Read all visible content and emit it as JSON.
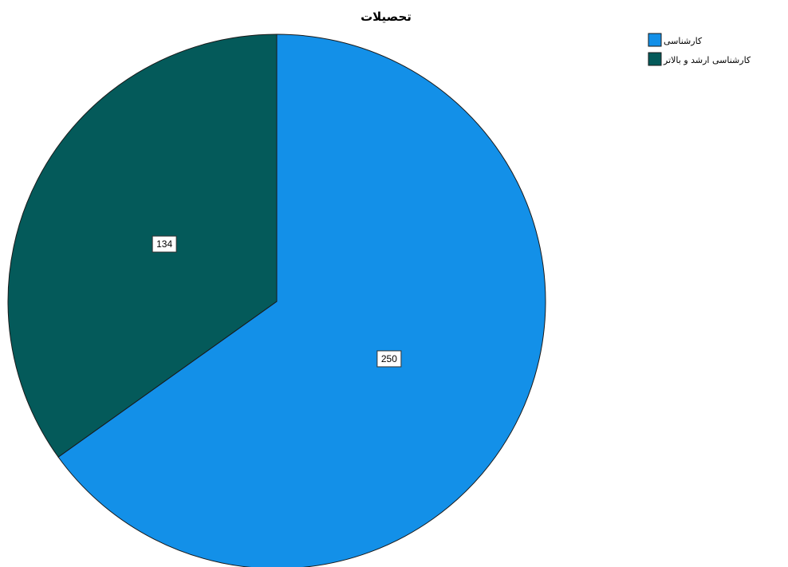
{
  "chart_data": {
    "type": "pie",
    "title": "تحصیلات",
    "categories": [
      "کارشناسی",
      "کارشناسی ارشد و بالاتر"
    ],
    "values": [
      250,
      134
    ],
    "colors": [
      "#1390E8",
      "#045A5A"
    ],
    "data_labels": [
      "250",
      "134"
    ],
    "legend": {
      "position": "top-right",
      "entries": [
        "کارشناسی",
        "کارشناسی ارشد و بالاتر"
      ]
    }
  }
}
